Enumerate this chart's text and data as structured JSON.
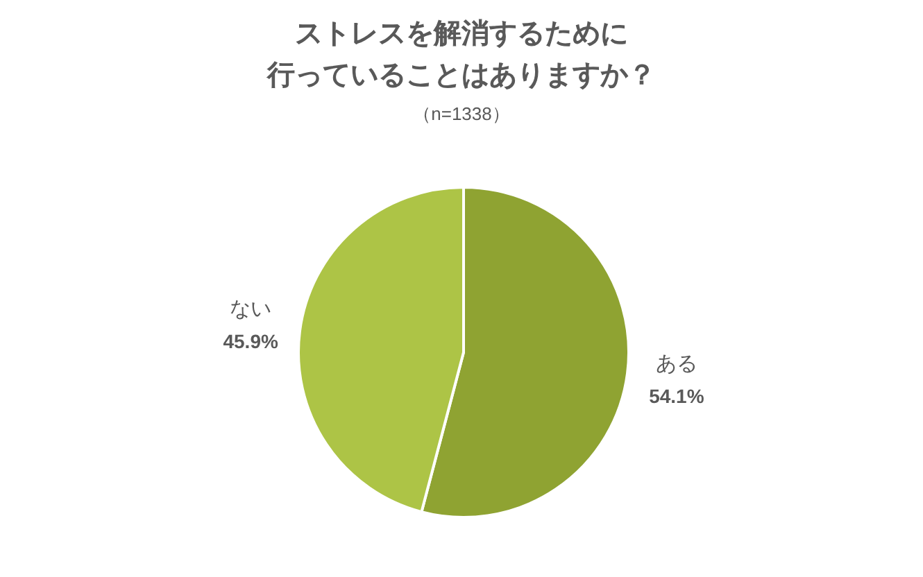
{
  "chart_data": {
    "type": "pie",
    "title": "ストレスを解消するために行っていることはありますか？",
    "subtitle": "（n=1338）",
    "categories": [
      "ある",
      "ない"
    ],
    "values": [
      54.1,
      45.9
    ],
    "colors": [
      "#8fa332",
      "#adc446"
    ],
    "value_labels": [
      "54.1%",
      "45.9%"
    ]
  }
}
